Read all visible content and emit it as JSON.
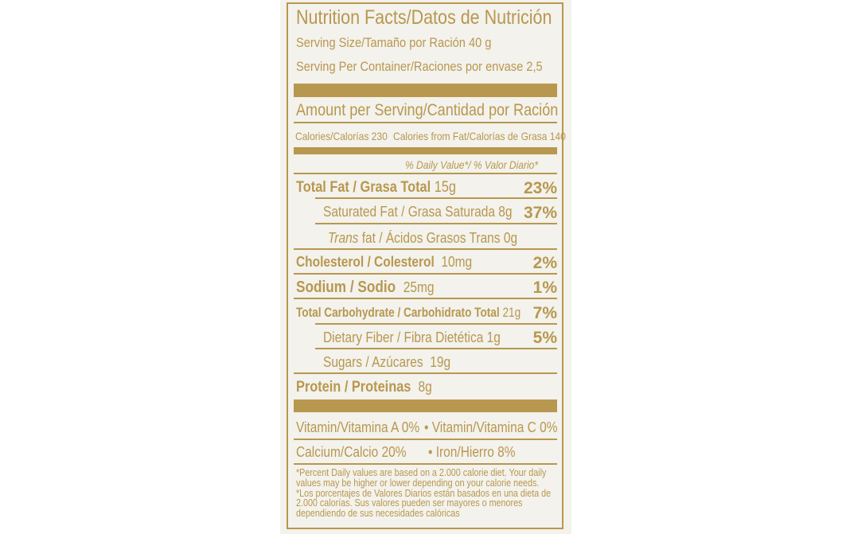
{
  "colors": {
    "accent": "#b8974f",
    "background": "#f3f2ec"
  },
  "title": "Nutrition Facts/Datos de Nutrición",
  "serving_size": "Serving Size/Tamaño por Ración 40 g",
  "servings_per_container": "Serving Per Container/Raciones por envase 2,5",
  "amount_per_serving": "Amount per Serving/Cantidad por Ración",
  "calories": "Calories/Calorías 230",
  "calories_from_fat": "Calories from Fat/Calorías de Grasa 140",
  "daily_value_header": "% Daily Value*/ % Valor Diario*",
  "nutrients": [
    {
      "name": "Total Fat / Grasa Total",
      "amount": "15g",
      "dv": "23%"
    },
    {
      "name": "Saturated Fat / Grasa Saturada",
      "amount": "8g",
      "dv": "37%"
    },
    {
      "name_italic": "Trans",
      "name": "fat / Ácidos Grasos Trans",
      "amount": "0g"
    },
    {
      "name": "Cholesterol / Colesterol",
      "amount": "10mg",
      "dv": "2%"
    },
    {
      "name": "Sodium / Sodio",
      "amount": "25mg",
      "dv": "1%"
    },
    {
      "name": "Total Carbohydrate / Carbohidrato Total",
      "amount": "21g",
      "dv": "7%"
    },
    {
      "name": "Dietary Fiber / Fibra Dietética",
      "amount": "1g",
      "dv": "5%"
    },
    {
      "name": "Sugars / Azúcares",
      "amount": "19g"
    },
    {
      "name": "Protein / Proteinas",
      "amount": "8g"
    }
  ],
  "vitamins": {
    "vitamin_a": "Vitamin/Vitamina A  0%",
    "vitamin_c": "• Vitamin/Vitamina C  0%",
    "calcium": "Calcium/Calcio 20%",
    "iron": "• Iron/Hierro 8%"
  },
  "footnote": {
    "en": "*Percent Daily values are based on a 2.000 calorie diet. Your daily values may be higher or lower depending on your calorie needs.",
    "es": "*Los porcentajes de Valores Diarios están basados en una dieta de 2.000 calorías. Sus valores pueden ser mayores o menores dependiendo de sus necesidades calóricas"
  }
}
